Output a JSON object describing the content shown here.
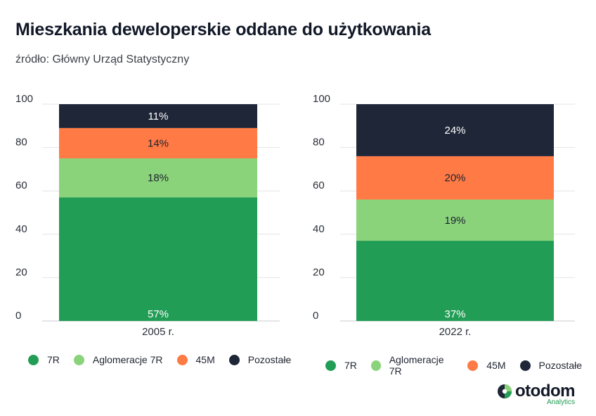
{
  "title": "Mieszkania deweloperskie oddane do użytkowania",
  "subtitle": "źródło: Główny Urząd Statystyczny",
  "brand": {
    "name": "otodom",
    "sub": "Analytics"
  },
  "colors": {
    "7R": "#229d55",
    "Aglomeracje 7R": "#8bd37b",
    "45M": "#ff7a45",
    "Pozostałe": "#1e2638",
    "grid": "#e3e4e7"
  },
  "chart_data": [
    {
      "type": "bar",
      "stacked": true,
      "categories": [
        "2005 r."
      ],
      "ylim": [
        0,
        100
      ],
      "yticks": [
        "0",
        "20",
        "40",
        "60",
        "80",
        "100"
      ],
      "grid": true,
      "legend": "bottom",
      "series": [
        {
          "name": "7R",
          "values": [
            57
          ],
          "label": "57%"
        },
        {
          "name": "Aglomeracje 7R",
          "values": [
            18
          ],
          "label": "18%"
        },
        {
          "name": "45M",
          "values": [
            14
          ],
          "label": "14%"
        },
        {
          "name": "Pozostałe",
          "values": [
            11
          ],
          "label": "11%"
        }
      ]
    },
    {
      "type": "bar",
      "stacked": true,
      "categories": [
        "2022 r."
      ],
      "ylim": [
        0,
        100
      ],
      "yticks": [
        "0",
        "20",
        "40",
        "60",
        "80",
        "100"
      ],
      "grid": true,
      "legend": "bottom",
      "series": [
        {
          "name": "7R",
          "values": [
            37
          ],
          "label": "37%"
        },
        {
          "name": "Aglomeracje 7R",
          "values": [
            19
          ],
          "label": "19%"
        },
        {
          "name": "45M",
          "values": [
            20
          ],
          "label": "20%"
        },
        {
          "name": "Pozostałe",
          "values": [
            24
          ],
          "label": "24%"
        }
      ]
    }
  ]
}
